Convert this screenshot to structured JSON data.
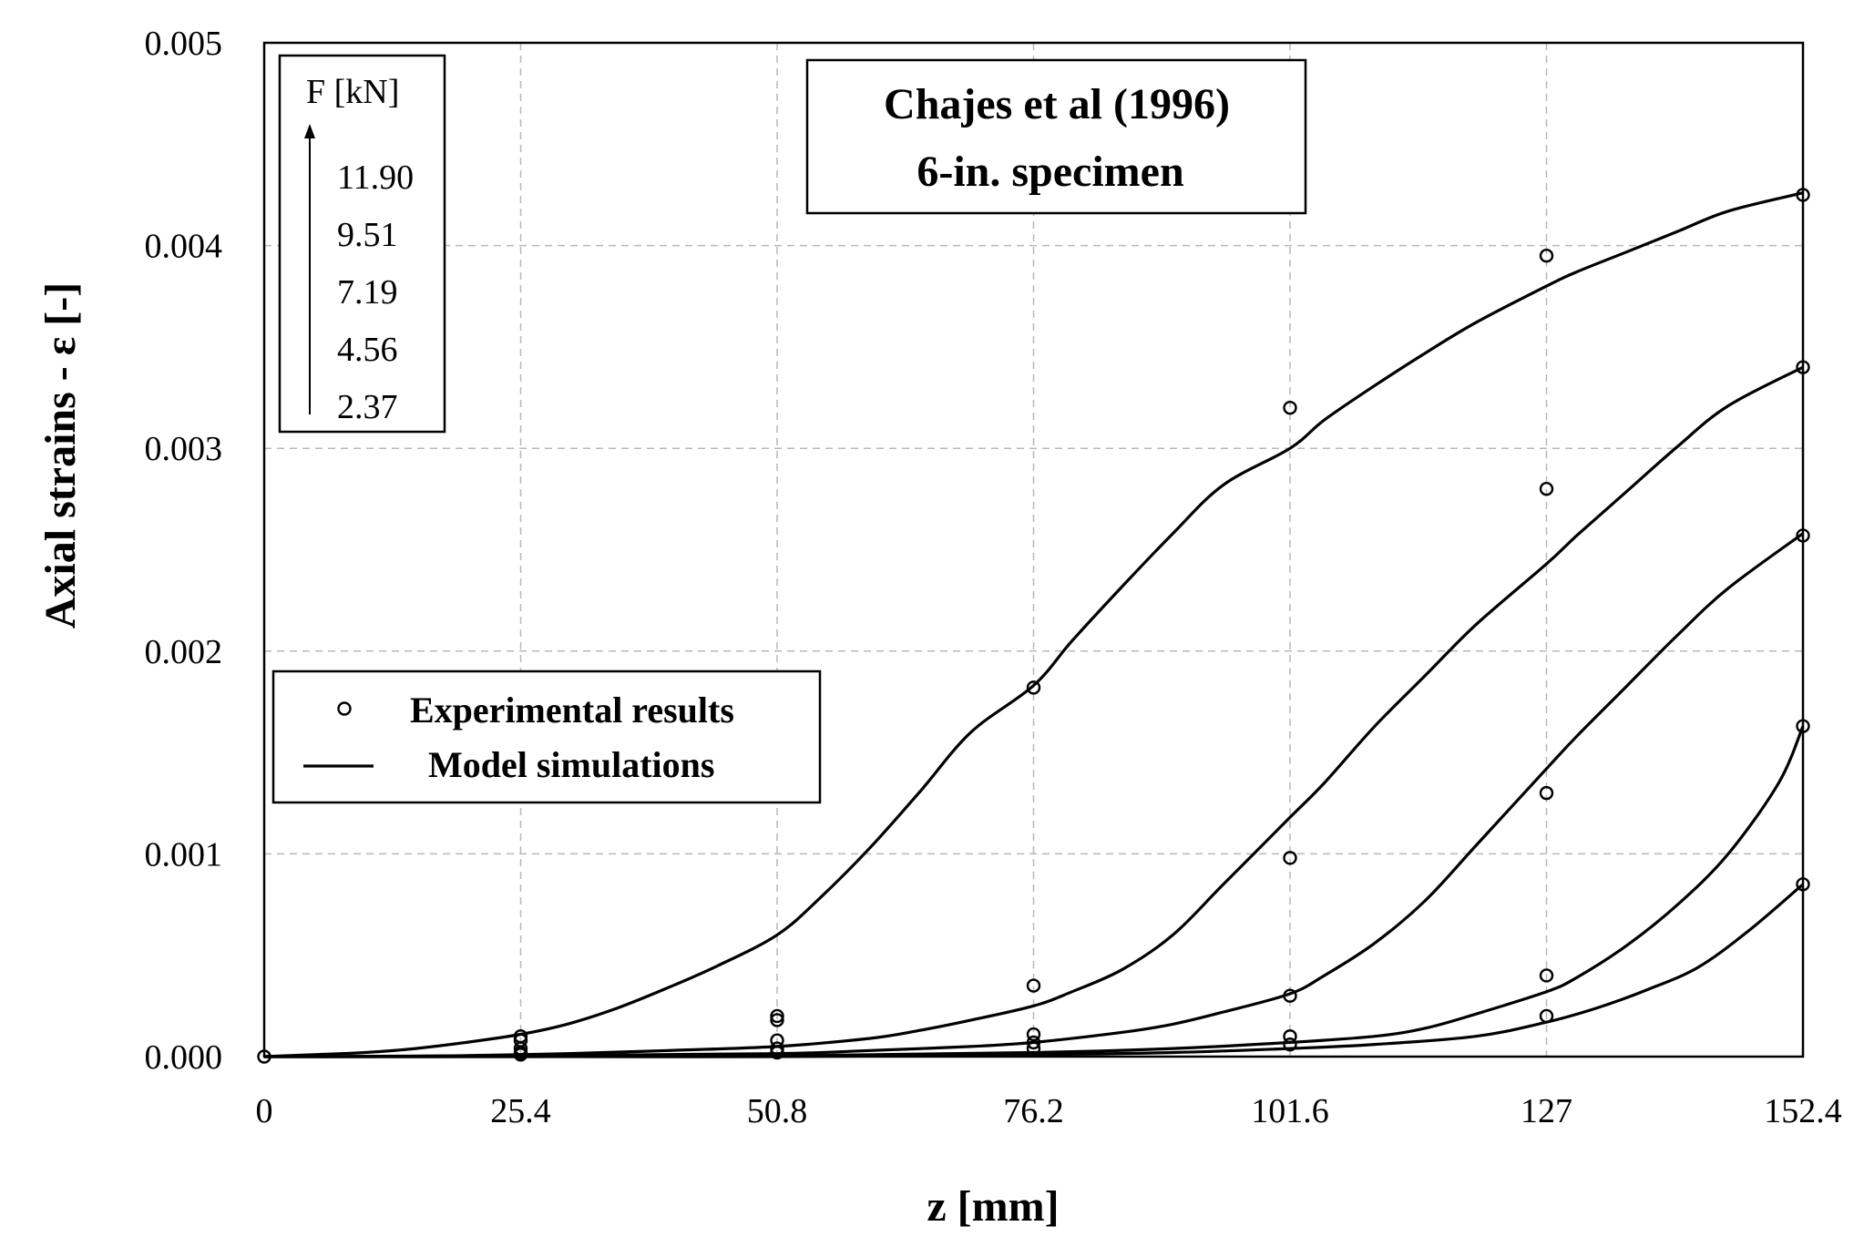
{
  "chart_data": {
    "type": "line",
    "title": "Chajes et al (1996)",
    "subtitle": "6-in. specimen",
    "xlabel": "z [mm]",
    "ylabel": "Axial strains - ε [-]",
    "xlim": [
      0,
      152.4
    ],
    "ylim": [
      0,
      0.005
    ],
    "x_ticks": [
      0,
      25.4,
      50.8,
      76.2,
      101.6,
      127,
      152.4
    ],
    "x_tick_labels": [
      "0",
      "25.4",
      "50.8",
      "76.2",
      "101.6",
      "127",
      "152.4"
    ],
    "y_ticks": [
      0,
      0.001,
      0.002,
      0.003,
      0.004,
      0.005
    ],
    "y_tick_labels": [
      "0.000",
      "0.001",
      "0.002",
      "0.003",
      "0.004",
      "0.005"
    ],
    "grid": true,
    "force_legend": {
      "title": "F [kN]",
      "values": [
        "11.90",
        "9.51",
        "7.19",
        "4.56",
        "2.37"
      ]
    },
    "legend": {
      "placement": "middle-left",
      "experimental_label": "Experimental results",
      "model_label": "Model simulations"
    },
    "series": [
      {
        "name": "11.90 kN",
        "model": {
          "x": [
            0,
            5,
            10,
            15,
            20,
            25.4,
            30,
            35,
            40,
            45,
            50.8,
            55,
            60,
            65,
            70,
            76.2,
            80,
            85,
            90,
            95,
            101.6,
            105,
            110,
            115,
            120,
            127,
            130,
            135,
            140,
            145,
            152.4
          ],
          "y": [
            0,
            1e-05,
            2e-05,
            4e-05,
            7e-05,
            0.00011,
            0.00016,
            0.00024,
            0.00034,
            0.00045,
            0.0006,
            0.00078,
            0.00103,
            0.00131,
            0.0016,
            0.00183,
            0.00205,
            0.00232,
            0.00258,
            0.00282,
            0.003,
            0.00314,
            0.00331,
            0.00347,
            0.00362,
            0.0038,
            0.00387,
            0.00397,
            0.00407,
            0.00417,
            0.00426
          ]
        },
        "experimental": {
          "x": [
            25.4,
            50.8,
            76.2,
            101.6,
            127,
            152.4
          ],
          "y": [
            0.0001,
            0.0002,
            0.00182,
            0.0032,
            0.00395,
            0.00425
          ]
        }
      },
      {
        "name": "9.51 kN",
        "model": {
          "x": [
            0,
            10,
            20,
            25.4,
            30,
            40,
            50.8,
            60,
            65,
            70,
            76.2,
            80,
            85,
            90,
            95,
            101.6,
            105,
            110,
            115,
            120,
            127,
            130,
            135,
            140,
            145,
            152.4
          ],
          "y": [
            0,
            0,
            5e-06,
            1e-05,
            1.5e-05,
            3e-05,
            5e-05,
            9e-05,
            0.00013,
            0.00018,
            0.00025,
            0.00032,
            0.00043,
            0.0006,
            0.00085,
            0.00118,
            0.00135,
            0.00163,
            0.00188,
            0.00213,
            0.00243,
            0.00257,
            0.00279,
            0.00301,
            0.00321,
            0.0034
          ]
        },
        "experimental": {
          "x": [
            25.4,
            50.8,
            76.2,
            101.6,
            127,
            152.4
          ],
          "y": [
            8e-05,
            0.00018,
            0.00035,
            0.00098,
            0.0028,
            0.0034
          ]
        }
      },
      {
        "name": "7.19 kN",
        "model": {
          "x": [
            0,
            25.4,
            50.8,
            60,
            70,
            76.2,
            85,
            90,
            95,
            101.6,
            105,
            110,
            115,
            120,
            127,
            130,
            135,
            140,
            145,
            152.4
          ],
          "y": [
            0,
            5e-06,
            1.5e-05,
            3e-05,
            5e-05,
            7e-05,
            0.00012,
            0.00016,
            0.00022,
            0.00031,
            0.0004,
            0.00056,
            0.00077,
            0.00104,
            0.00142,
            0.00158,
            0.00183,
            0.00208,
            0.00231,
            0.00258
          ]
        },
        "experimental": {
          "x": [
            25.4,
            50.8,
            76.2,
            101.6,
            127,
            152.4
          ],
          "y": [
            4e-05,
            8e-05,
            0.00011,
            0.0003,
            0.0013,
            0.00257
          ]
        }
      },
      {
        "name": "4.56 kN",
        "model": {
          "x": [
            0,
            25.4,
            50.8,
            76.2,
            90,
            101.6,
            110,
            115,
            120,
            127,
            130,
            135,
            140,
            145,
            150,
            152.4
          ],
          "y": [
            0,
            0,
            5e-06,
            2e-05,
            4e-05,
            7e-05,
            0.0001,
            0.00014,
            0.00021,
            0.00032,
            0.00039,
            0.00055,
            0.00075,
            0.001,
            0.00135,
            0.00163
          ]
        },
        "experimental": {
          "x": [
            25.4,
            50.8,
            76.2,
            101.6,
            127,
            152.4
          ],
          "y": [
            2e-05,
            4e-05,
            7e-05,
            0.0001,
            0.0004,
            0.00163
          ]
        }
      },
      {
        "name": "2.37 kN",
        "model": {
          "x": [
            0,
            25.4,
            50.8,
            76.2,
            90,
            101.6,
            110,
            120,
            127,
            132,
            137,
            142,
            147,
            152.4
          ],
          "y": [
            0,
            0,
            0,
            1e-05,
            2e-05,
            4e-05,
            6e-05,
            0.0001,
            0.00017,
            0.00024,
            0.00033,
            0.00044,
            0.00062,
            0.00085
          ]
        },
        "experimental": {
          "x": [
            25.4,
            50.8,
            76.2,
            101.6,
            127,
            152.4
          ],
          "y": [
            1e-05,
            2e-05,
            4e-05,
            6e-05,
            0.0002,
            0.00085
          ]
        }
      }
    ]
  }
}
